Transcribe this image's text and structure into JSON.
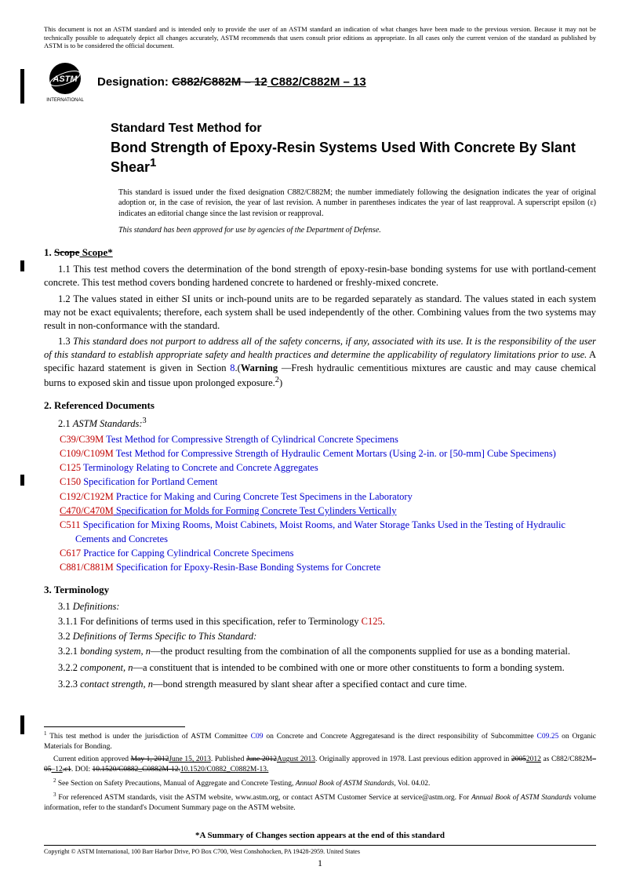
{
  "top_notice": "This document is not an ASTM standard and is intended only to provide the user of an ASTM standard an indication of what changes have been made to the previous version. Because it may not be technically possible to adequately depict all changes accurately, ASTM recommends that users consult prior editions as appropriate. In all cases only the current version of the standard as published by ASTM is to be considered the official document.",
  "logo_label": "INTERNATIONAL",
  "designation_label": "Designation: ",
  "designation_old": "C882/C882M – 12",
  "designation_new": " C882/C882M – 13",
  "title_eyebrow": "Standard Test Method for",
  "title_main": "Bond Strength of Epoxy-Resin Systems Used With Concrete By Slant Shear",
  "title_sup": "1",
  "title_note": "This standard is issued under the fixed designation C882/C882M; the number immediately following the designation indicates the year of original adoption or, in the case of revision, the year of last revision. A number in parentheses indicates the year of last reapproval. A superscript epsilon (ε) indicates an editorial change since the last revision or reapproval.",
  "title_dod": "This standard has been approved for use by agencies of the Department of Defense.",
  "s1_title_num": "1. ",
  "s1_title_old": "Scope",
  "s1_title_new": " Scope*",
  "s1_p1": "1.1 This test method covers the determination of the bond strength of epoxy-resin-base bonding systems for use with portland-cement concrete. This test method covers bonding hardened concrete to hardened or freshly-mixed concrete.",
  "s1_p2": "1.2 The values stated in either SI units or inch-pound units are to be regarded separately as standard. The values stated in each system may not be exact equivalents; therefore, each system shall be used independently of the other. Combining values from the two systems may result in non-conformance with the standard.",
  "s1_p3a": "1.3 ",
  "s1_p3b": "This standard does not purport to address all of the safety concerns, if any, associated with its use. It is the responsibility of the user of this standard to establish appropriate safety and health practices and determine the applicability of regulatory limitations prior to use.",
  "s1_p3c": " A specific hazard statement is given in Section ",
  "s1_p3_link": "8",
  "s1_p3d": ".(",
  "s1_p3_warn": "Warning",
  "s1_p3e": " —Fresh hydraulic cementitious mixtures are caustic and may cause chemical burns to exposed skin and tissue upon prolonged exposure.",
  "s1_p3_sup": "2",
  "s1_p3f": ")",
  "s2_title": "2. Referenced Documents",
  "s2_sub": "2.1 ",
  "s2_sub_italic": "ASTM Standards:",
  "s2_sub_sup": "3",
  "refs": [
    {
      "code": "C39/C39M",
      "text": " Test Method for Compressive Strength of Cylindrical Concrete Specimens"
    },
    {
      "code": "C109/C109M",
      "text": " Test Method for Compressive Strength of Hydraulic Cement Mortars (Using 2-in. or [50-mm] Cube Specimens)"
    },
    {
      "code": "C125",
      "text": " Terminology Relating to Concrete and Concrete Aggregates"
    },
    {
      "code": "C150",
      "text": " Specification for Portland Cement"
    },
    {
      "code": "C192/C192M",
      "text": " Practice for Making and Curing Concrete Test Specimens in the Laboratory"
    },
    {
      "code": "C470/C470M",
      "text": " Specification for Molds for Forming Concrete Test Cylinders Vertically"
    },
    {
      "code": "C511",
      "text": " Specification for Mixing Rooms, Moist Cabinets, Moist Rooms, and Water Storage Tanks Used in the Testing of Hydraulic Cements and Concretes"
    },
    {
      "code": "C617",
      "text": " Practice for Capping Cylindrical Concrete Specimens"
    },
    {
      "code": "C881/C881M",
      "text": " Specification for Epoxy-Resin-Base Bonding Systems for Concrete"
    }
  ],
  "s3_title": "3. Terminology",
  "s3_p1_a": "3.1 ",
  "s3_p1_b": "Definitions:",
  "s3_p11_a": "3.1.1 For definitions of terms used in this specification, refer to Terminology ",
  "s3_p11_link": "C125",
  "s3_p11_b": ".",
  "s3_p2_a": "3.2 ",
  "s3_p2_b": "Definitions of Terms Specific to This Standard:",
  "s3_p21_a": "3.2.1 ",
  "s3_p21_b": "bonding system, n",
  "s3_p21_c": "—the product resulting from the combination of all the components supplied for use as a bonding material.",
  "s3_p22_a": "3.2.2 ",
  "s3_p22_b": "component, n",
  "s3_p22_c": "—a constituent that is intended to be combined with one or more other constituents to form a bonding system.",
  "s3_p23_a": "3.2.3 ",
  "s3_p23_b": "contact strength, n",
  "s3_p23_c": "—bond strength measured by slant shear after a specified contact and cure time.",
  "fn1_a": " This test method is under the jurisdiction of ASTM Committee ",
  "fn1_link1": "C09",
  "fn1_b": " on Concrete and Concrete Aggregatesand is the direct responsibility of Subcommittee ",
  "fn1_link2": "C09.25",
  "fn1_c": " on Organic Materials for Bonding.",
  "fn1_line2a": "Current edition approved ",
  "fn1_line2_str1": "May 1, 2012",
  "fn1_line2_ul1": "June 15, 2013",
  "fn1_line2b": ". Published ",
  "fn1_line2_str2": "June 2012",
  "fn1_line2_ul2": "August 2013",
  "fn1_line2c": ". Originally approved in 1978. Last previous edition approved in ",
  "fn1_line2_str3": "2005",
  "fn1_line2_ul3": "2012",
  "fn1_line2d": " as C882/C882M",
  "fn1_line2_str4": "–05",
  "fn1_line2_ul4": "–12",
  "fn1_line2_str5": ".ε1",
  "fn1_line2e": ". DOI: ",
  "fn1_line2_str6": "10.1520/C0882_C0882M-12.",
  "fn1_line2_ul5": "10.1520/C0882_C0882M-13.",
  "fn2": " See Section on Safety Precautions, Manual of Aggregate and Concrete Testing, ",
  "fn2_i": "Annual Book of ASTM Standards",
  "fn2_b": ", Vol. 04.02.",
  "fn3": " For referenced ASTM standards, visit the ASTM website, www.astm.org, or contact ASTM Customer Service at service@astm.org. For ",
  "fn3_i": "Annual Book of ASTM Standards",
  "fn3_b": " volume information, refer to the standard's Document Summary page on the ASTM website.",
  "summary_line": "*A Summary of Changes section appears at the end of this standard",
  "copyright": "Copyright © ASTM International, 100 Barr Harbor Drive, PO Box C700, West Conshohocken, PA 19428-2959. United States",
  "page_number": "1"
}
